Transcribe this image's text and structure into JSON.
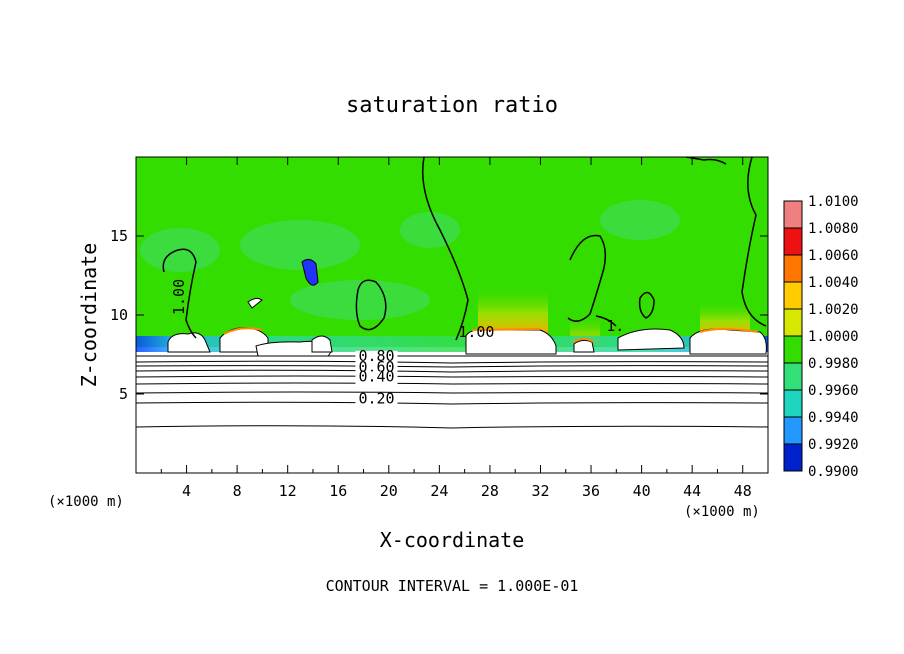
{
  "chart_data": {
    "type": "heatmap",
    "title": "saturation ratio",
    "xlabel": "X-coordinate",
    "ylabel": "Z-coordinate",
    "x_units_left": "(×1000 m)",
    "x_units_right": "(×1000 m)",
    "xlim": [
      0,
      50
    ],
    "ylim": [
      0,
      20
    ],
    "x_ticks": [
      4,
      8,
      12,
      16,
      20,
      24,
      28,
      32,
      36,
      40,
      44,
      48
    ],
    "y_ticks": [
      5,
      10,
      15
    ],
    "colorbar": {
      "levels": [
        "1.0100",
        "1.0080",
        "1.0060",
        "1.0040",
        "1.0020",
        "1.0000",
        "0.9980",
        "0.9960",
        "0.9940",
        "0.9920",
        "0.9900"
      ],
      "colors": [
        "#f08080",
        "#ee1111",
        "#ff7700",
        "#ffcc00",
        "#d6e800",
        "#33dd00",
        "#33e077",
        "#1ed6c0",
        "#2299ff",
        "#0022cc",
        "#7700aa"
      ]
    },
    "contour_labels": [
      {
        "text": "1.00",
        "x": 3.8,
        "z": 10.0
      },
      {
        "text": "1.00",
        "x": 25.5,
        "z": 8.6
      },
      {
        "text": "1.",
        "x": 37.2,
        "z": 9.0
      },
      {
        "text": "0.80",
        "x": 17.6,
        "z": 7.1
      },
      {
        "text": "0.60",
        "x": 17.6,
        "z": 6.4
      },
      {
        "text": "0.40",
        "x": 17.6,
        "z": 5.8
      },
      {
        "text": "0.20",
        "x": 17.6,
        "z": 4.4
      }
    ],
    "footer": "CONTOUR INTERVAL = 1.000E-01"
  }
}
